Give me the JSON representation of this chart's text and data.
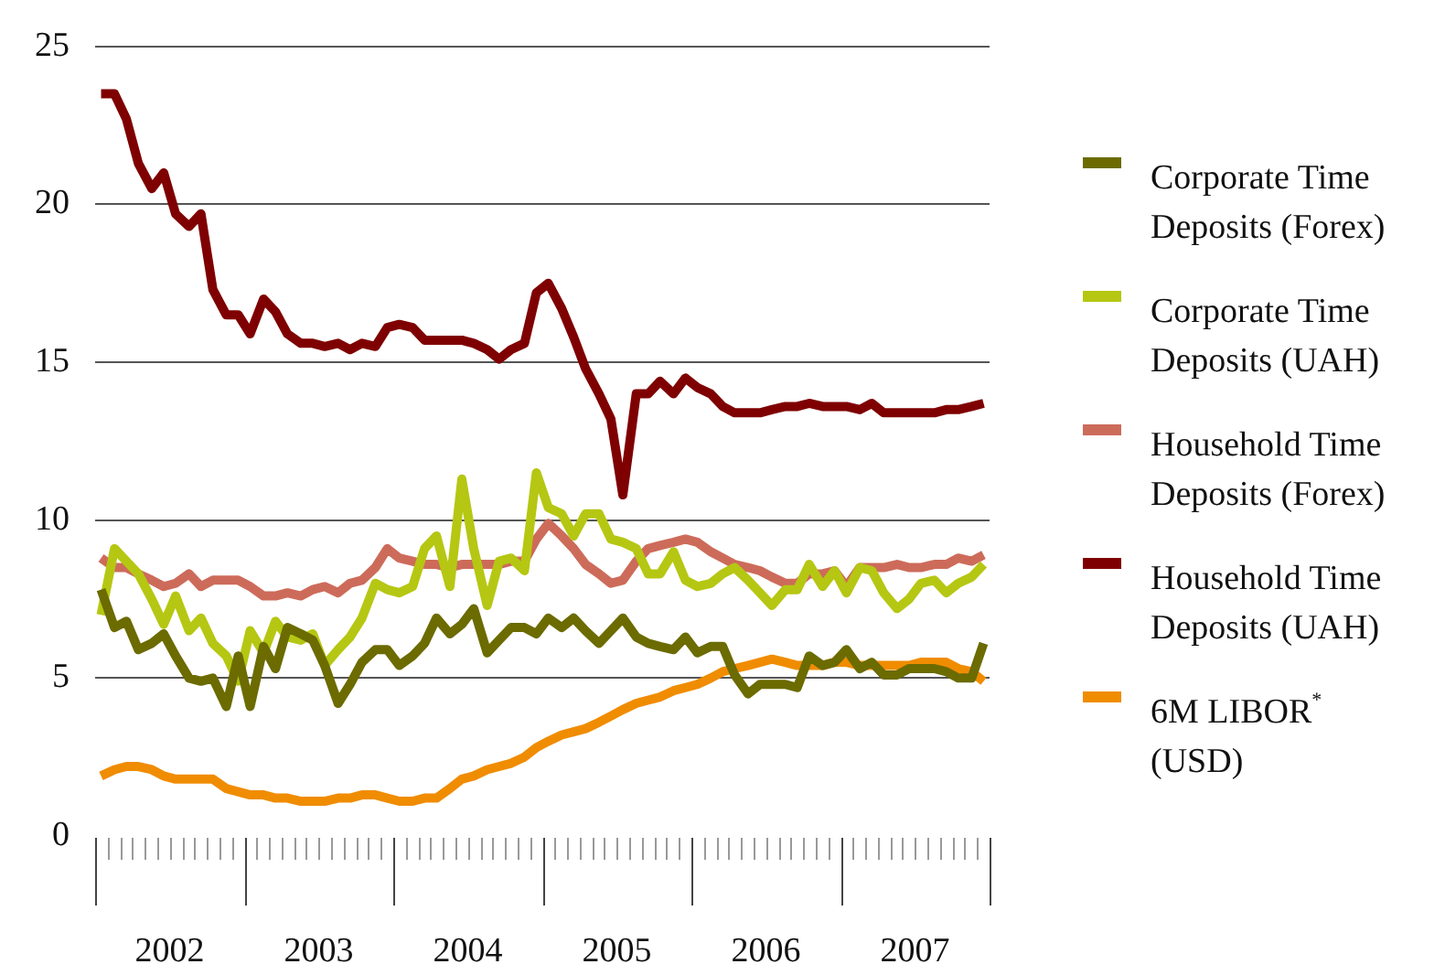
{
  "chart_data": {
    "type": "line",
    "legend": "right",
    "grid": "y",
    "xlim": [
      2002,
      2008
    ],
    "ylim": [
      0,
      25
    ],
    "yticks": [
      0,
      5,
      10,
      15,
      20,
      25
    ],
    "xticks": [
      {
        "value": 2002,
        "label": null
      },
      {
        "value": 2002.0833,
        "label": null
      },
      {
        "value": 2002.1667,
        "label": null
      },
      {
        "value": 2002.25,
        "label": null
      },
      {
        "value": 2002.3333,
        "label": null
      },
      {
        "value": 2002.4167,
        "label": null
      },
      {
        "value": 2002.5,
        "label": "2002"
      },
      {
        "value": 2002.5833,
        "label": null
      },
      {
        "value": 2002.6667,
        "label": null
      },
      {
        "value": 2002.75,
        "label": null
      },
      {
        "value": 2002.8333,
        "label": null
      },
      {
        "value": 2002.9167,
        "label": null
      },
      {
        "value": 2003,
        "label": null
      },
      {
        "value": 2003.0833,
        "label": null
      },
      {
        "value": 2003.1667,
        "label": null
      },
      {
        "value": 2003.25,
        "label": null
      },
      {
        "value": 2003.3333,
        "label": null
      },
      {
        "value": 2003.4167,
        "label": null
      },
      {
        "value": 2003.5,
        "label": "2003"
      },
      {
        "value": 2003.5833,
        "label": null
      },
      {
        "value": 2003.6667,
        "label": null
      },
      {
        "value": 2003.75,
        "label": null
      },
      {
        "value": 2003.8333,
        "label": null
      },
      {
        "value": 2003.9167,
        "label": null
      },
      {
        "value": 2004,
        "label": null
      },
      {
        "value": 2004.0833,
        "label": null
      },
      {
        "value": 2004.1667,
        "label": null
      },
      {
        "value": 2004.25,
        "label": null
      },
      {
        "value": 2004.3333,
        "label": null
      },
      {
        "value": 2004.4167,
        "label": null
      },
      {
        "value": 2004.5,
        "label": "2004"
      },
      {
        "value": 2004.5833,
        "label": null
      },
      {
        "value": 2004.6667,
        "label": null
      },
      {
        "value": 2004.75,
        "label": null
      },
      {
        "value": 2004.8333,
        "label": null
      },
      {
        "value": 2004.9167,
        "label": null
      },
      {
        "value": 2005,
        "label": null
      },
      {
        "value": 2005.0833,
        "label": null
      },
      {
        "value": 2005.1667,
        "label": null
      },
      {
        "value": 2005.25,
        "label": null
      },
      {
        "value": 2005.3333,
        "label": null
      },
      {
        "value": 2005.4167,
        "label": null
      },
      {
        "value": 2005.5,
        "label": "2005"
      },
      {
        "value": 2005.5833,
        "label": null
      },
      {
        "value": 2005.6667,
        "label": null
      },
      {
        "value": 2005.75,
        "label": null
      },
      {
        "value": 2005.8333,
        "label": null
      },
      {
        "value": 2005.9167,
        "label": null
      },
      {
        "value": 2006,
        "label": null
      },
      {
        "value": 2006.0833,
        "label": null
      },
      {
        "value": 2006.1667,
        "label": null
      },
      {
        "value": 2006.25,
        "label": null
      },
      {
        "value": 2006.3333,
        "label": null
      },
      {
        "value": 2006.4167,
        "label": null
      },
      {
        "value": 2006.5,
        "label": "2006"
      },
      {
        "value": 2006.5833,
        "label": null
      },
      {
        "value": 2006.6667,
        "label": null
      },
      {
        "value": 2006.75,
        "label": null
      },
      {
        "value": 2006.8333,
        "label": null
      },
      {
        "value": 2006.9167,
        "label": null
      },
      {
        "value": 2007,
        "label": null
      },
      {
        "value": 2007.0833,
        "label": null
      },
      {
        "value": 2007.1667,
        "label": null
      },
      {
        "value": 2007.25,
        "label": null
      },
      {
        "value": 2007.3333,
        "label": null
      },
      {
        "value": 2007.4167,
        "label": null
      },
      {
        "value": 2007.5,
        "label": "2007"
      },
      {
        "value": 2007.5833,
        "label": null
      },
      {
        "value": 2007.6667,
        "label": null
      },
      {
        "value": 2007.75,
        "label": null
      },
      {
        "value": 2007.8333,
        "label": null
      },
      {
        "value": 2007.9167,
        "label": null
      },
      {
        "value": 2008,
        "label": null
      }
    ],
    "x": [
      2002.04,
      2002.13,
      2002.21,
      2002.29,
      2002.38,
      2002.46,
      2002.54,
      2002.63,
      2002.71,
      2002.79,
      2002.88,
      2002.96,
      2003.04,
      2003.13,
      2003.21,
      2003.29,
      2003.38,
      2003.46,
      2003.54,
      2003.63,
      2003.71,
      2003.79,
      2003.88,
      2003.96,
      2004.04,
      2004.13,
      2004.21,
      2004.29,
      2004.38,
      2004.46,
      2004.54,
      2004.63,
      2004.71,
      2004.79,
      2004.88,
      2004.96,
      2005.04,
      2005.13,
      2005.21,
      2005.29,
      2005.38,
      2005.46,
      2005.54,
      2005.63,
      2005.71,
      2005.79,
      2005.88,
      2005.96,
      2006.04,
      2006.13,
      2006.21,
      2006.29,
      2006.38,
      2006.46,
      2006.54,
      2006.63,
      2006.71,
      2006.79,
      2006.88,
      2006.96,
      2007.04,
      2007.13,
      2007.21,
      2007.29,
      2007.38,
      2007.46,
      2007.54,
      2007.63,
      2007.71,
      2007.79,
      2007.88,
      2007.96
    ],
    "series": [
      {
        "name": "Corporate Time Deposits (Forex)",
        "color": "#6b6b00",
        "values": [
          7.8,
          6.6,
          6.8,
          5.9,
          6.1,
          6.4,
          5.7,
          5.0,
          4.9,
          5.0,
          4.1,
          5.7,
          4.1,
          6.0,
          5.3,
          6.6,
          6.4,
          6.2,
          5.4,
          4.2,
          4.8,
          5.5,
          5.9,
          5.9,
          5.4,
          5.7,
          6.1,
          6.9,
          6.4,
          6.7,
          7.2,
          5.8,
          6.2,
          6.6,
          6.6,
          6.4,
          6.9,
          6.6,
          6.9,
          6.5,
          6.1,
          6.5,
          6.9,
          6.3,
          6.1,
          6.0,
          5.9,
          6.3,
          5.8,
          6.0,
          6.0,
          5.1,
          4.5,
          4.8,
          4.8,
          4.8,
          4.7,
          5.7,
          5.4,
          5.5,
          5.9,
          5.3,
          5.5,
          5.1,
          5.1,
          5.3,
          5.3,
          5.3,
          5.2,
          5.0,
          5.0,
          6.1
        ]
      },
      {
        "name": "Corporate Time Deposits (UAH)",
        "color": "#b5c712",
        "values": [
          7.0,
          9.1,
          8.7,
          8.3,
          7.5,
          6.7,
          7.6,
          6.5,
          6.9,
          6.1,
          5.7,
          4.9,
          6.5,
          5.8,
          6.8,
          6.3,
          6.2,
          6.4,
          5.4,
          5.9,
          6.3,
          6.9,
          8.0,
          7.8,
          7.7,
          7.9,
          9.1,
          9.5,
          7.9,
          11.3,
          9.1,
          7.3,
          8.7,
          8.8,
          8.4,
          11.5,
          10.4,
          10.2,
          9.5,
          10.2,
          10.2,
          9.4,
          9.3,
          9.1,
          8.3,
          8.3,
          9.0,
          8.1,
          7.9,
          8.0,
          8.3,
          8.5,
          8.1,
          7.7,
          7.3,
          7.8,
          7.8,
          8.6,
          7.9,
          8.4,
          7.7,
          8.5,
          8.4,
          7.7,
          7.2,
          7.5,
          8.0,
          8.1,
          7.7,
          8.0,
          8.2,
          8.6
        ]
      },
      {
        "name": "Household Time Deposits (Forex)",
        "color": "#cd6b5a",
        "values": [
          8.8,
          8.5,
          8.5,
          8.3,
          8.1,
          7.9,
          8.0,
          8.3,
          7.9,
          8.1,
          8.1,
          8.1,
          7.9,
          7.6,
          7.6,
          7.7,
          7.6,
          7.8,
          7.9,
          7.7,
          8.0,
          8.1,
          8.5,
          9.1,
          8.8,
          8.7,
          8.6,
          8.6,
          8.5,
          8.6,
          8.6,
          8.6,
          8.6,
          8.7,
          8.7,
          9.4,
          9.9,
          9.5,
          9.1,
          8.6,
          8.3,
          8.0,
          8.1,
          8.7,
          9.1,
          9.2,
          9.3,
          9.4,
          9.3,
          9.0,
          8.8,
          8.6,
          8.5,
          8.4,
          8.2,
          8.0,
          8.0,
          8.3,
          8.3,
          8.4,
          7.9,
          8.5,
          8.5,
          8.5,
          8.6,
          8.5,
          8.5,
          8.6,
          8.6,
          8.8,
          8.7,
          8.9
        ]
      },
      {
        "name": "Household Time Deposits (UAH)",
        "color": "#7f0000",
        "values": [
          23.5,
          23.5,
          22.7,
          21.3,
          20.5,
          21.0,
          19.7,
          19.3,
          19.7,
          17.3,
          16.5,
          16.5,
          15.9,
          17.0,
          16.6,
          15.9,
          15.6,
          15.6,
          15.5,
          15.6,
          15.4,
          15.6,
          15.5,
          16.1,
          16.2,
          16.1,
          15.7,
          15.7,
          15.7,
          15.7,
          15.6,
          15.4,
          15.1,
          15.4,
          15.6,
          17.2,
          17.5,
          16.7,
          15.8,
          14.8,
          14.0,
          13.2,
          10.8,
          14.0,
          14.0,
          14.4,
          14.0,
          14.5,
          14.2,
          14.0,
          13.6,
          13.4,
          13.4,
          13.4,
          13.5,
          13.6,
          13.6,
          13.7,
          13.6,
          13.6,
          13.6,
          13.5,
          13.7,
          13.4,
          13.4,
          13.4,
          13.4,
          13.4,
          13.5,
          13.5,
          13.6,
          13.7
        ]
      },
      {
        "name": "6M LIBOR$^{*}$ (USD)",
        "color": "#f08c00",
        "values": [
          1.9,
          2.1,
          2.2,
          2.2,
          2.1,
          1.9,
          1.8,
          1.8,
          1.8,
          1.8,
          1.5,
          1.4,
          1.3,
          1.3,
          1.2,
          1.2,
          1.1,
          1.1,
          1.1,
          1.2,
          1.2,
          1.3,
          1.3,
          1.2,
          1.1,
          1.1,
          1.2,
          1.2,
          1.5,
          1.8,
          1.9,
          2.1,
          2.2,
          2.3,
          2.5,
          2.8,
          3.0,
          3.2,
          3.3,
          3.4,
          3.6,
          3.8,
          4.0,
          4.2,
          4.3,
          4.4,
          4.6,
          4.7,
          4.8,
          5.0,
          5.2,
          5.3,
          5.4,
          5.5,
          5.6,
          5.5,
          5.4,
          5.4,
          5.4,
          5.5,
          5.5,
          5.4,
          5.4,
          5.4,
          5.4,
          5.4,
          5.5,
          5.5,
          5.5,
          5.3,
          5.2,
          4.9
        ]
      }
    ]
  }
}
